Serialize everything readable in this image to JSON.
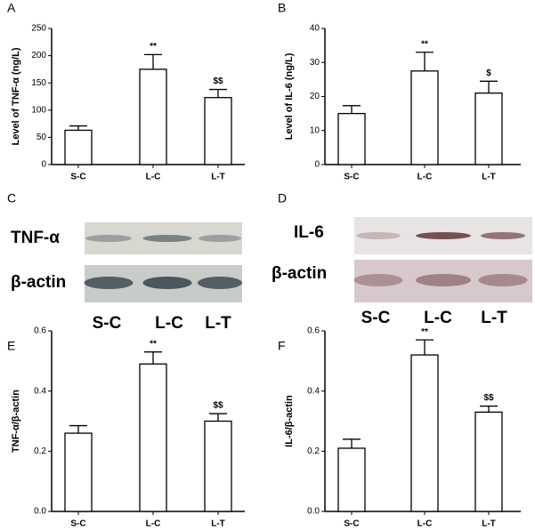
{
  "chart_data": [
    {
      "type": "bar",
      "panel": "A",
      "ylabel": "Level of TNF-α (ng/L)",
      "categories": [
        "S-C",
        "L-C",
        "L-T"
      ],
      "values": [
        63,
        175,
        123
      ],
      "errors": [
        8,
        27,
        15
      ],
      "annotations": [
        null,
        "**",
        "$$"
      ],
      "color": "#ffffff",
      "ylim": [
        0,
        250
      ],
      "yticks": [
        0,
        50,
        100,
        150,
        200,
        250
      ]
    },
    {
      "type": "bar",
      "panel": "B",
      "ylabel": "Level of IL-6 (ng/L)",
      "categories": [
        "S-C",
        "L-C",
        "L-T"
      ],
      "values": [
        15,
        27.5,
        21
      ],
      "errors": [
        2.3,
        5.5,
        3.5
      ],
      "annotations": [
        null,
        "**",
        "$"
      ],
      "color": "#ffffff",
      "ylim": [
        0,
        40
      ],
      "yticks": [
        0,
        10,
        20,
        30,
        40
      ]
    },
    {
      "type": "bar",
      "panel": "E",
      "ylabel": "TNF-α/β-actin",
      "categories": [
        "S-C",
        "L-C",
        "L-T"
      ],
      "values": [
        0.26,
        0.49,
        0.3
      ],
      "errors": [
        0.025,
        0.04,
        0.025
      ],
      "annotations": [
        null,
        "**",
        "$$"
      ],
      "color": "#ffffff",
      "ylim": [
        0,
        0.6
      ],
      "yticks": [
        {
          "value": 0,
          "label": "0.0"
        },
        0.2,
        0.4,
        0.6
      ]
    },
    {
      "type": "bar",
      "panel": "F",
      "ylabel": "IL-6/β-actin",
      "categories": [
        "S-C",
        "L-C",
        "L-T"
      ],
      "values": [
        0.21,
        0.52,
        0.33
      ],
      "errors": [
        0.03,
        0.05,
        0.02
      ],
      "annotations": [
        null,
        "**",
        "$$"
      ],
      "color": "#ffffff",
      "ylim": [
        0,
        0.6
      ],
      "yticks": [
        {
          "value": 0,
          "label": "0.0"
        },
        0.2,
        0.4,
        0.6
      ]
    }
  ],
  "blots": [
    {
      "panel": "C",
      "rows": [
        "TNF-α",
        "β-actin"
      ],
      "lanes": [
        "S-C",
        "L-C",
        "L-T"
      ]
    },
    {
      "panel": "D",
      "rows": [
        "IL-6",
        "β-actin"
      ],
      "lanes": [
        "S-C",
        "L-C",
        "L-T"
      ]
    }
  ]
}
